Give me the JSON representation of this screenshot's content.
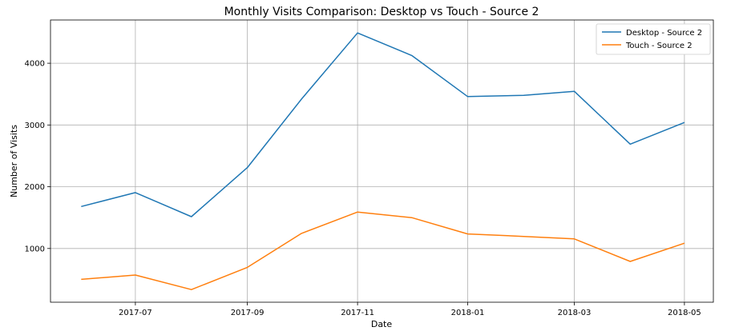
{
  "chart_data": {
    "type": "line",
    "title": "Monthly Visits Comparison: Desktop vs Touch - Source 2",
    "xlabel": "Date",
    "ylabel": "Number of Visits",
    "x": [
      "2017-06",
      "2017-07",
      "2017-08",
      "2017-09",
      "2017-10",
      "2017-11",
      "2017-12",
      "2018-01",
      "2018-02",
      "2018-03",
      "2018-04",
      "2018-05"
    ],
    "x_ticks": [
      "2017-07",
      "2017-09",
      "2017-11",
      "2018-01",
      "2018-03",
      "2018-05"
    ],
    "x_range": [
      "2017-05-15",
      "2018-05-17"
    ],
    "y_ticks": [
      1000,
      2000,
      3000,
      4000
    ],
    "ylim": [
      130,
      4700
    ],
    "grid": true,
    "legend_position": "top-right",
    "series": [
      {
        "name": "Desktop - Source 2",
        "color": "#1f77b4",
        "values": [
          1680,
          1905,
          1515,
          2310,
          3420,
          4490,
          4125,
          3460,
          3480,
          3545,
          2690,
          3040
        ]
      },
      {
        "name": "Touch - Source 2",
        "color": "#ff7f0e",
        "values": [
          500,
          570,
          335,
          695,
          1245,
          1590,
          1500,
          1235,
          1195,
          1155,
          790,
          1085
        ]
      }
    ]
  }
}
